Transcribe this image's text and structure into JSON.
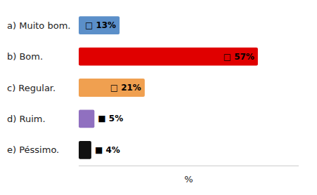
{
  "chart_data": {
    "type": "bar",
    "orientation": "horizontal",
    "categories": [
      "a) Muito bom.",
      "b) Bom.",
      "c) Regular.",
      "d) Ruim.",
      "e) Péssimo."
    ],
    "values": [
      13,
      57,
      21,
      5,
      4
    ],
    "value_labels": [
      "□ 13%",
      "□ 57%",
      "□ 21%",
      "■ 5%",
      "■ 4%"
    ],
    "colors": [
      "#5b8fc9",
      "#e00000",
      "#f0a050",
      "#9070c0",
      "#111111"
    ],
    "xlabel": "%",
    "xlim": [
      0,
      70
    ],
    "grid": false,
    "data_labels": true,
    "tick_labels": "y"
  }
}
